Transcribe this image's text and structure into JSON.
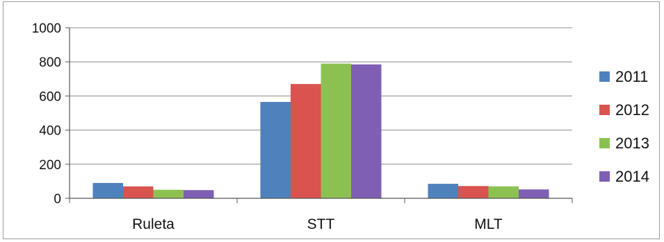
{
  "chart_data": {
    "type": "bar",
    "categories": [
      "Ruleta",
      "STT",
      "MLT"
    ],
    "series": [
      {
        "name": "2011",
        "values": [
          90,
          565,
          85
        ],
        "color": "#4f81bd"
      },
      {
        "name": "2012",
        "values": [
          70,
          670,
          72
        ],
        "color": "#d9534f"
      },
      {
        "name": "2013",
        "values": [
          50,
          790,
          70
        ],
        "color": "#8cc152"
      },
      {
        "name": "2014",
        "values": [
          48,
          785,
          52
        ],
        "color": "#7e5fb4"
      }
    ],
    "yticks": [
      "0",
      "200",
      "400",
      "600",
      "800",
      "1000"
    ],
    "ylim": [
      0,
      1000
    ],
    "grid": true,
    "legend_position": "right"
  }
}
